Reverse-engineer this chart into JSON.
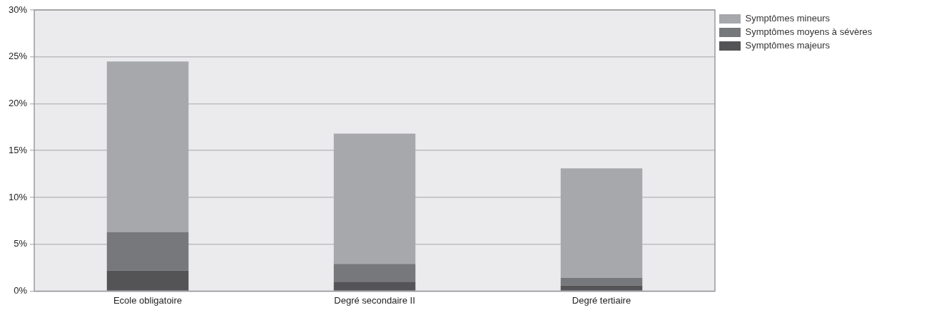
{
  "chart_data": {
    "type": "bar",
    "stacked": true,
    "categories": [
      "Ecole obligatoire",
      "Degré secondaire II",
      "Degré tertiaire"
    ],
    "series": [
      {
        "name": "Symptômes majeurs",
        "color": "#545456",
        "values": [
          2.2,
          1.0,
          0.6
        ]
      },
      {
        "name": "Symptômes moyens à sévères",
        "color": "#77787b",
        "values": [
          4.1,
          1.9,
          0.8
        ]
      },
      {
        "name": "Symptômes mineurs",
        "color": "#a7a8ab",
        "values": [
          18.2,
          13.9,
          11.7
        ]
      }
    ],
    "ylim": [
      0,
      30
    ],
    "yticks": [
      {
        "value": 0,
        "label": "0%"
      },
      {
        "value": 5,
        "label": "5%"
      },
      {
        "value": 10,
        "label": "10%"
      },
      {
        "value": 15,
        "label": "15%"
      },
      {
        "value": 20,
        "label": "20%"
      },
      {
        "value": 25,
        "label": "25%"
      },
      {
        "value": 30,
        "label": "30%"
      }
    ],
    "grid": "y",
    "legend": "top right"
  }
}
